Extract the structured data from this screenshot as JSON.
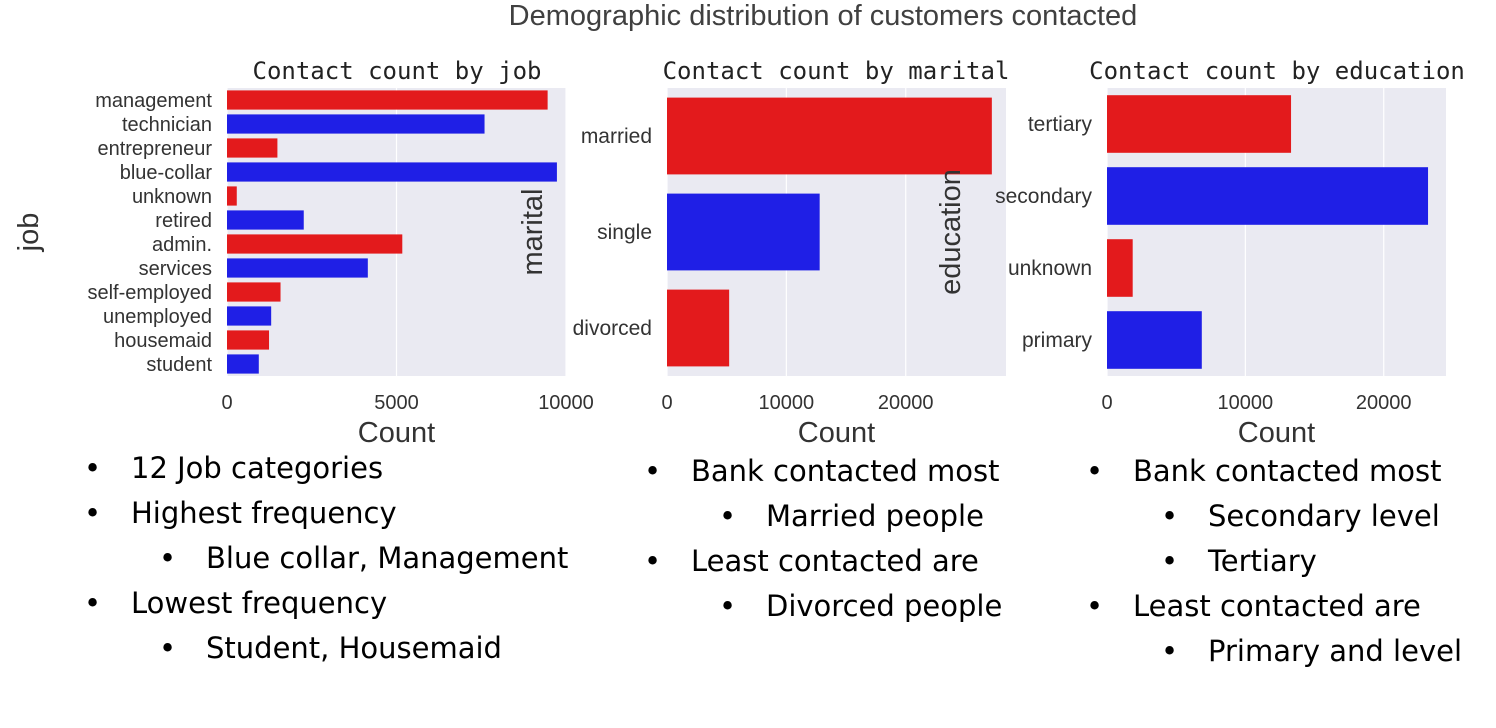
{
  "suptitle": "Demographic distribution of customers contacted",
  "chart_data": [
    {
      "type": "bar",
      "orientation": "horizontal",
      "title": "Contact count by job",
      "xlabel": "Count",
      "ylabel": "job",
      "categories": [
        "management",
        "technician",
        "entrepreneur",
        "blue-collar",
        "unknown",
        "retired",
        "admin.",
        "services",
        "self-employed",
        "unemployed",
        "housemaid",
        "student"
      ],
      "values": [
        9458,
        7597,
        1487,
        9732,
        288,
        2264,
        5171,
        4154,
        1579,
        1303,
        1240,
        938
      ],
      "xlim": [
        0,
        10000
      ],
      "xticks": [
        0,
        5000,
        10000
      ],
      "colors": [
        "#e31a1c",
        "#1f1fe6"
      ],
      "grid": true
    },
    {
      "type": "bar",
      "orientation": "horizontal",
      "title": "Contact count by marital",
      "xlabel": "Count",
      "ylabel": "marital",
      "categories": [
        "married",
        "single",
        "divorced"
      ],
      "values": [
        27214,
        12790,
        5207
      ],
      "xlim": [
        0,
        28400
      ],
      "xticks": [
        0,
        10000,
        20000
      ],
      "colors": [
        "#e31a1c",
        "#1f1fe6"
      ],
      "grid": true
    },
    {
      "type": "bar",
      "orientation": "horizontal",
      "title": "Contact count by education",
      "xlabel": "Count",
      "ylabel": "education",
      "categories": [
        "tertiary",
        "secondary",
        "unknown",
        "primary"
      ],
      "values": [
        13301,
        23202,
        1857,
        6851
      ],
      "xlim": [
        0,
        24500
      ],
      "xticks": [
        0,
        10000,
        20000
      ],
      "colors": [
        "#e31a1c",
        "#1f1fe6"
      ],
      "grid": true
    }
  ],
  "notes": [
    [
      {
        "level": 1,
        "text": "12 Job categories"
      },
      {
        "level": 1,
        "text": "Highest frequency"
      },
      {
        "level": 2,
        "text": "Blue collar, Management"
      },
      {
        "level": 1,
        "text": "Lowest frequency"
      },
      {
        "level": 2,
        "text": "Student, Housemaid"
      }
    ],
    [
      {
        "level": 1,
        "text": "Bank contacted most"
      },
      {
        "level": 2,
        "text": "Married people"
      },
      {
        "level": 1,
        "text": "Least contacted are"
      },
      {
        "level": 2,
        "text": "Divorced people"
      }
    ],
    [
      {
        "level": 1,
        "text": "Bank contacted most"
      },
      {
        "level": 2,
        "text": "Secondary level"
      },
      {
        "level": 2,
        "text": "Tertiary"
      },
      {
        "level": 1,
        "text": "Least contacted are"
      },
      {
        "level": 2,
        "text": "Primary and level"
      }
    ]
  ]
}
